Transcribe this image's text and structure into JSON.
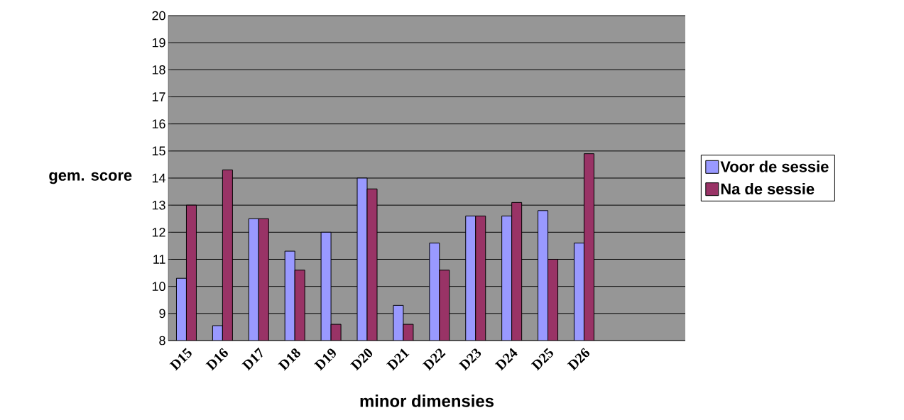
{
  "chart_data": {
    "type": "bar",
    "xlabel": "minor dimensies",
    "ylabel": "gem. score",
    "categories": [
      "D15",
      "D16",
      "D17",
      "D18",
      "D19",
      "D20",
      "D21",
      "D22",
      "D23",
      "D24",
      "D25",
      "D26"
    ],
    "series": [
      {
        "name": "Voor de sessie",
        "color": "#9999ff",
        "values": [
          10.3,
          8.55,
          12.5,
          11.3,
          12.0,
          14.0,
          9.3,
          11.6,
          12.6,
          12.6,
          12.8,
          11.6
        ]
      },
      {
        "name": "Na de sessie",
        "color": "#993366",
        "values": [
          13.0,
          14.3,
          12.5,
          10.6,
          8.6,
          13.6,
          8.6,
          10.6,
          12.6,
          13.1,
          11.0,
          14.9
        ]
      }
    ],
    "ylim": [
      8,
      20
    ],
    "yticks": [
      8,
      9,
      10,
      11,
      12,
      13,
      14,
      15,
      16,
      17,
      18,
      19,
      20
    ],
    "grid": "y",
    "legend": "right"
  }
}
